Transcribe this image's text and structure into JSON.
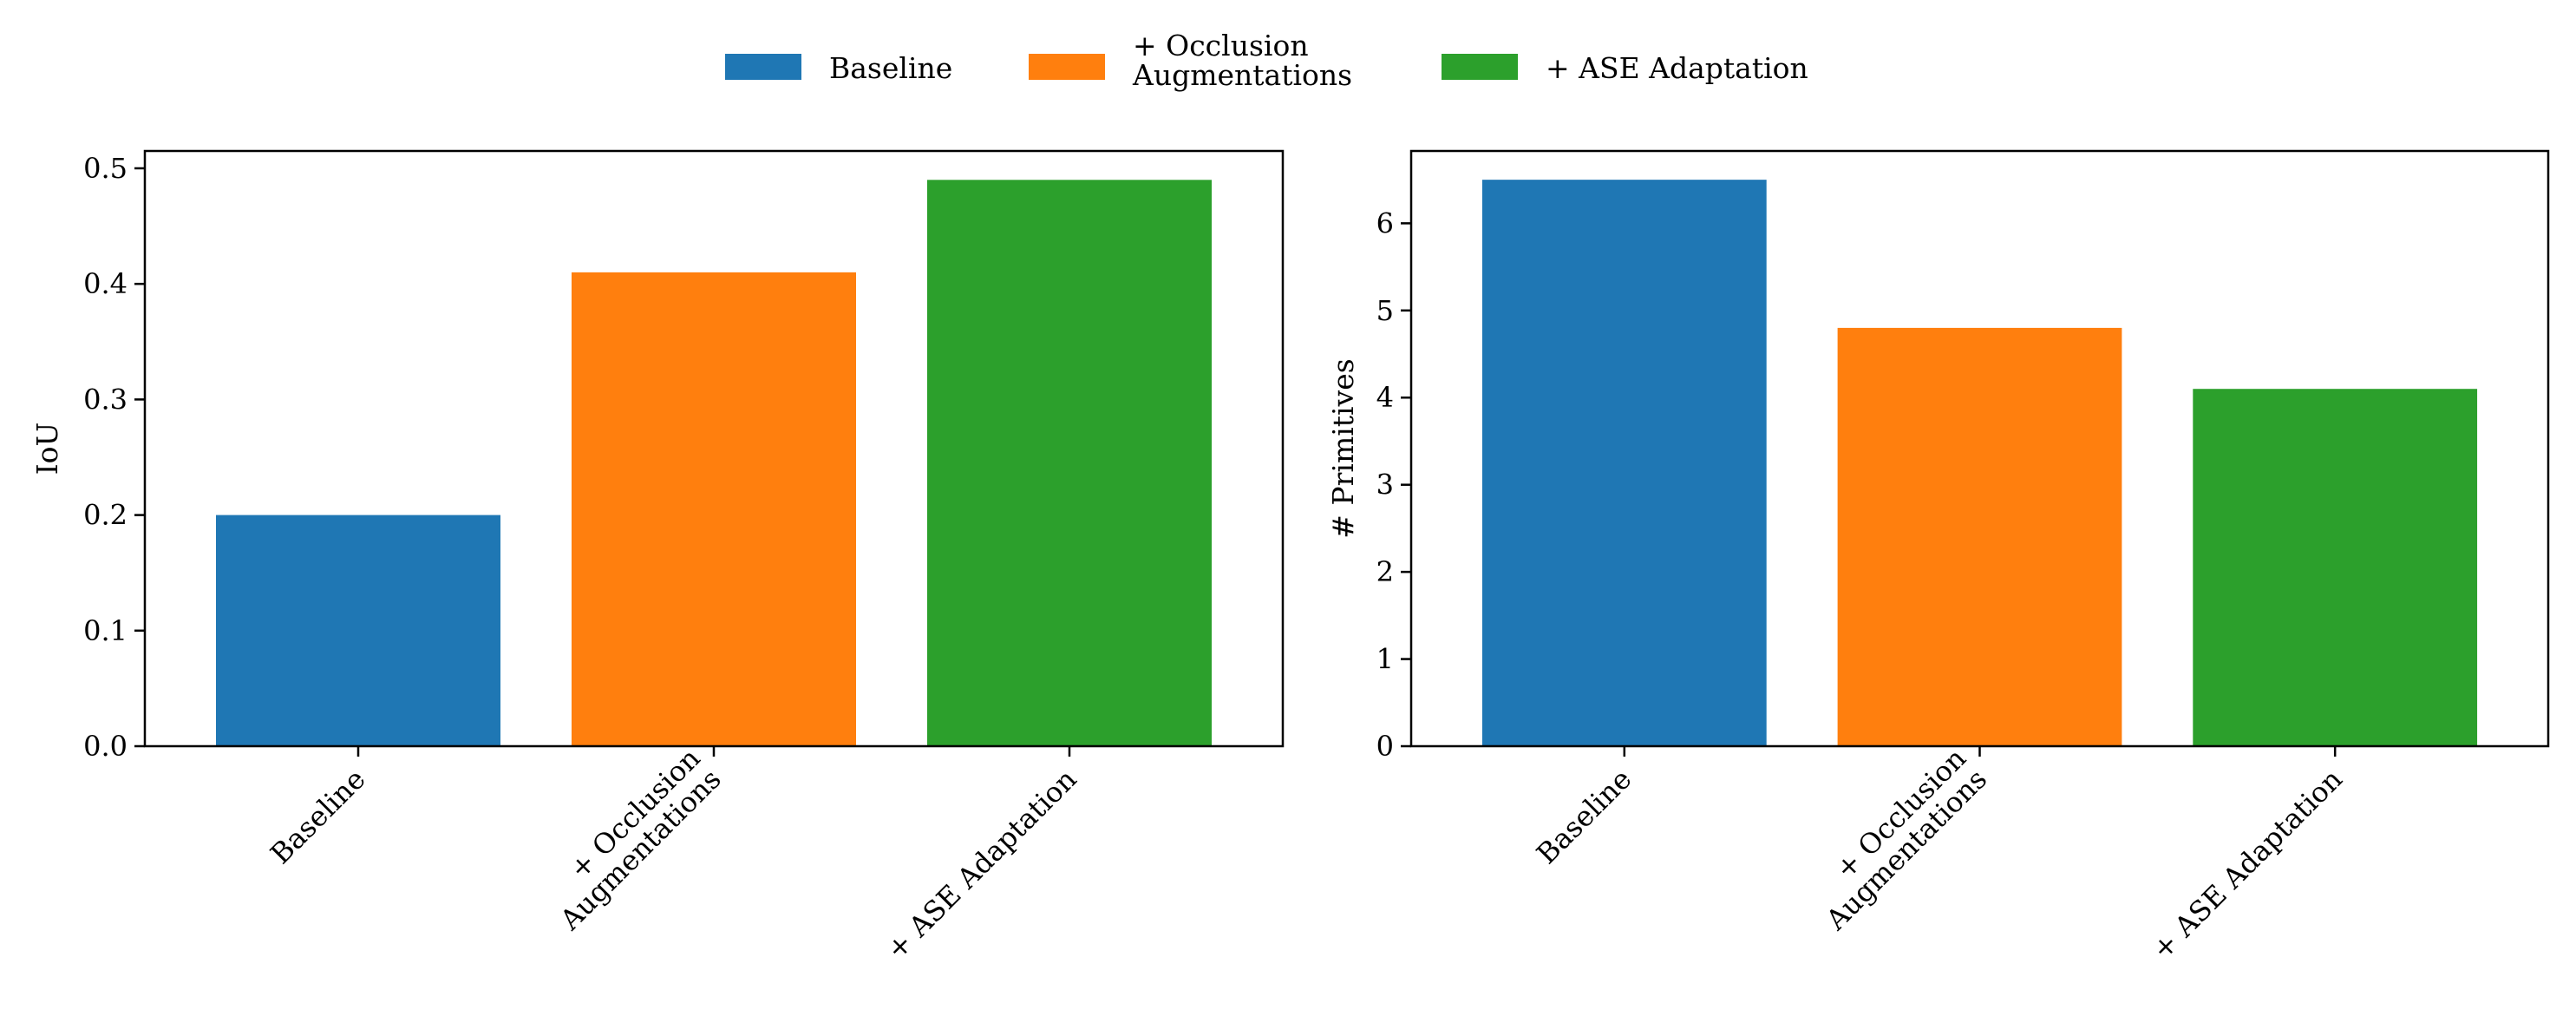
{
  "legend": {
    "placement": "top-center",
    "entries": [
      {
        "label_lines": [
          "Baseline"
        ],
        "color": "#1f77b4"
      },
      {
        "label_lines": [
          "+ Occlusion",
          "Augmentations"
        ],
        "color": "#ff7f0e"
      },
      {
        "label_lines": [
          "+ ASE Adaptation"
        ],
        "color": "#2ca02c"
      }
    ]
  },
  "chart_data": [
    {
      "type": "bar",
      "categories": [
        [
          "Baseline"
        ],
        [
          "+ Occlusion",
          "Augmentations"
        ],
        [
          "+ ASE Adaptation"
        ]
      ],
      "values": [
        0.2,
        0.41,
        0.49
      ],
      "colors": [
        "#1f77b4",
        "#ff7f0e",
        "#2ca02c"
      ],
      "xlabel": "",
      "ylabel": "IoU",
      "ylim": [
        0,
        0.515
      ],
      "yticks": [
        0.0,
        0.1,
        0.2,
        0.3,
        0.4,
        0.5
      ],
      "ytick_labels": [
        "0.0",
        "0.1",
        "0.2",
        "0.3",
        "0.4",
        "0.5"
      ],
      "grid": false
    },
    {
      "type": "bar",
      "categories": [
        [
          "Baseline"
        ],
        [
          "+ Occlusion",
          "Augmentations"
        ],
        [
          "+ ASE Adaptation"
        ]
      ],
      "values": [
        6.5,
        4.8,
        4.1
      ],
      "colors": [
        "#1f77b4",
        "#ff7f0e",
        "#2ca02c"
      ],
      "xlabel": "",
      "ylabel": "# Primitives",
      "ylim": [
        0,
        6.83
      ],
      "yticks": [
        0,
        1,
        2,
        3,
        4,
        5,
        6
      ],
      "ytick_labels": [
        "0",
        "1",
        "2",
        "3",
        "4",
        "5",
        "6"
      ],
      "grid": false
    }
  ]
}
